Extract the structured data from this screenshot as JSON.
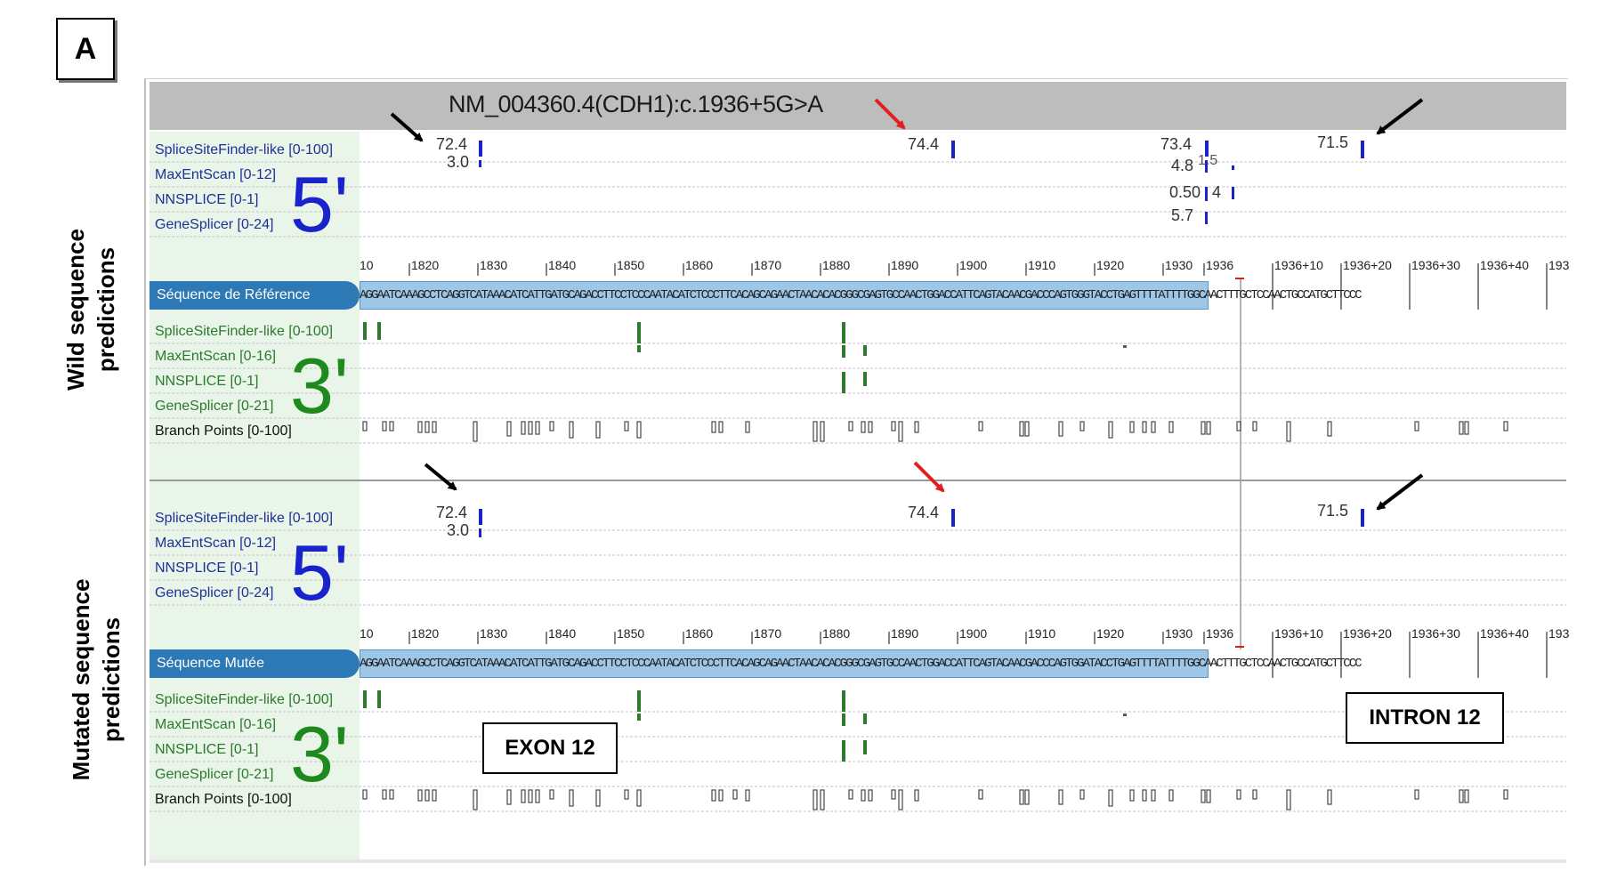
{
  "panel_label": "A",
  "section_wild": {
    "line1": "Wild sequence",
    "line2": "predictions"
  },
  "section_mutated": {
    "line1": "Mutated sequence",
    "line2": "predictions"
  },
  "variant_title": "NM_004360.4(CDH1):c.1936+5G>A",
  "five_prime_tracks": [
    "SpliceSiteFinder-like [0-100]",
    "MaxEntScan [0-12]",
    "NNSPLICE [0-1]",
    "GeneSplicer [0-24]"
  ],
  "five_prime_mark": "5'",
  "three_prime_tracks": [
    "SpliceSiteFinder-like [0-100]",
    "MaxEntScan [0-16]",
    "NNSPLICE [0-1]",
    "GeneSplicer [0-21]"
  ],
  "three_prime_mark": "3'",
  "branch_points_label": "Branch Points [0-100]",
  "ref_sequence_label": "Séquence de Référence",
  "mut_sequence_label": "Séquence Mutée",
  "ref_sequence": "AGGAATCAAAGCCTCAGGTCATAAACATCATTGATGCAGACCTTCCTCCCAATACATCTCCCTTCACAGCAGAACTAACACACGGGCGAGTGCCAACTGGACCATTCAGTACAACGACCCAGTGGGTACCTGAGTTTTATTTTGGCAACTTTGCTCCAACTGCCATGCTTCCC",
  "mut_sequence": "AGGAATCAAAGCCTCAGGTCATAAACATCATTGATGCAGACCTTCCTCCCAATACATCTCCCTTCACAGCAGAACTAACACACGGGCGAGTGCCAACTGGACCATTCAGTACAACGACCCAGTGGATACCTGAGTTTTATTTTGGCAACTTTGCTCCAACTGCCATGCTTCCC",
  "ruler_ticks": [
    "10",
    "1820",
    "1830",
    "1840",
    "1850",
    "1860",
    "1870",
    "1880",
    "1890",
    "1900",
    "1910",
    "1920",
    "1930",
    "1936",
    "1936+10",
    "1936+20",
    "1936+30",
    "1936+40",
    "193"
  ],
  "wild_5prime_scores": {
    "site_1": {
      "ssf": "72.4",
      "mes": "3.0"
    },
    "site_2": {
      "ssf": "74.4"
    },
    "site_3": {
      "ssf": "73.4",
      "mes": "4.8",
      "nns": "0.50",
      "gs": "5.7",
      "extra_a": "1.5",
      "extra_b": "4"
    },
    "site_4": {
      "ssf": "71.5"
    }
  },
  "mut_5prime_scores": {
    "site_1": {
      "ssf": "72.4",
      "mes": "3.0"
    },
    "site_2": {
      "ssf": "74.4"
    },
    "site_4": {
      "ssf": "71.5"
    }
  },
  "exon_label": "EXON 12",
  "intron_label": "INTRON 12",
  "colors": {
    "header_gray": "#bdbdbd",
    "track_column": "#e8f5e8",
    "sequence_tab": "#2d79b5",
    "sequence_bar": "#9ec6e6",
    "five_prime_blue": "#1a22cc",
    "three_prime_green": "#1e8a1e",
    "arrow_black": "#000000",
    "arrow_red": "#e02020"
  }
}
